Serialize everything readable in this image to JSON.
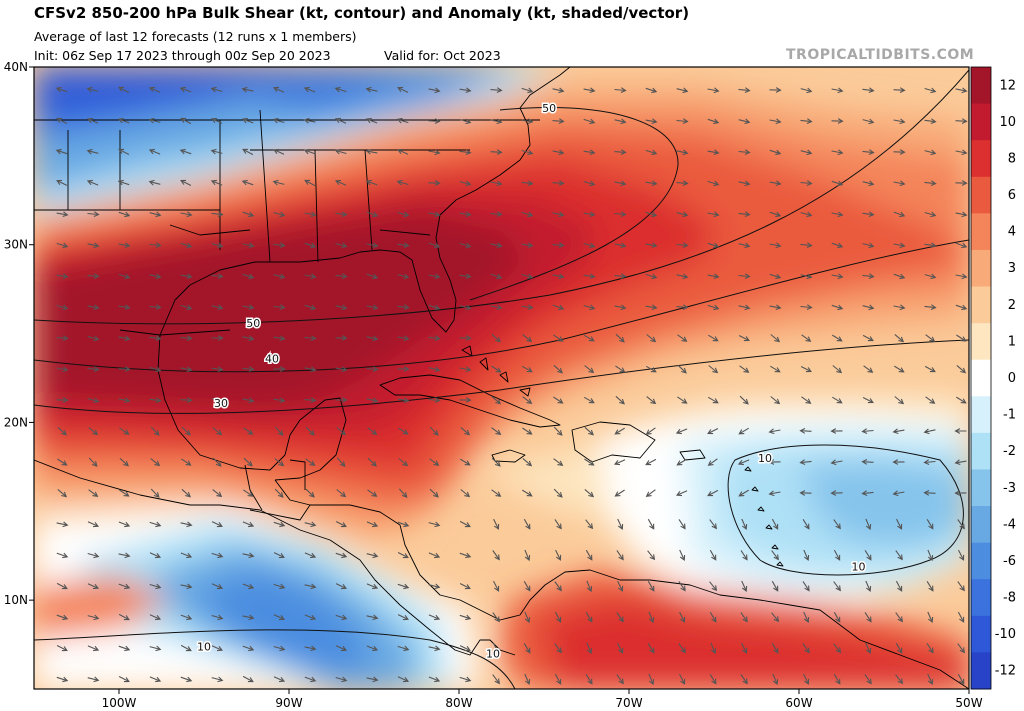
{
  "header": {
    "title": "CFSv2 850-200 hPa Bulk Shear (kt, contour) and Anomaly (kt, shaded/vector)",
    "subtitle": "Average of last 12 forecasts (12 runs x 1 members)",
    "init": "Init: 06z Sep 17 2023 through 00z Sep 20 2023",
    "valid": "Valid for: Oct 2023",
    "credit": "TROPICALTIDBITS.COM"
  },
  "map": {
    "extent": {
      "lon_min": -105,
      "lon_max": -50,
      "lat_min": 5,
      "lat_max": 40
    },
    "lat_labels": [
      {
        "lat": 40,
        "text": "40N"
      },
      {
        "lat": 30,
        "text": "30N"
      },
      {
        "lat": 20,
        "text": "20N"
      },
      {
        "lat": 10,
        "text": "10N"
      }
    ],
    "lon_labels": [
      {
        "lon": -100,
        "text": "100W"
      },
      {
        "lon": -90,
        "text": "90W"
      },
      {
        "lon": -80,
        "text": "80W"
      },
      {
        "lon": -70,
        "text": "70W"
      },
      {
        "lon": -60,
        "text": "60W"
      },
      {
        "lon": -50,
        "text": "50W"
      }
    ],
    "contour_labels": [
      {
        "text": "50",
        "lon": -74.7,
        "lat": 37.7
      },
      {
        "text": "50",
        "lon": -92.1,
        "lat": 25.6
      },
      {
        "text": "40",
        "lon": -91.0,
        "lat": 23.6
      },
      {
        "text": "30",
        "lon": -94.0,
        "lat": 21.1
      },
      {
        "text": "10",
        "lon": -62.0,
        "lat": 18.0
      },
      {
        "text": "10",
        "lon": -56.5,
        "lat": 11.9
      },
      {
        "text": "10",
        "lon": -95.0,
        "lat": 7.4
      },
      {
        "text": "10",
        "lon": -78.0,
        "lat": 7.0
      }
    ]
  },
  "colorbar": {
    "labels": [
      "12",
      "10",
      "8",
      "6",
      "4",
      "3",
      "2",
      "1",
      "0",
      "-1",
      "-2",
      "-3",
      "-4",
      "-6",
      "-8",
      "-10",
      "-12"
    ],
    "colors": [
      "#a3162a",
      "#c21a2e",
      "#dc2f2f",
      "#ea5a3e",
      "#f4845a",
      "#f8aa78",
      "#fbcb9a",
      "#fde6c0",
      "#ffffff",
      "#d6f1fb",
      "#aee0f6",
      "#86c4ec",
      "#68a9e3",
      "#4c8de0",
      "#3b72dd",
      "#2f58d8",
      "#2842c8"
    ]
  },
  "colors": {
    "land_outline": "#000000",
    "vector": "#555555",
    "contour": "#111111"
  }
}
